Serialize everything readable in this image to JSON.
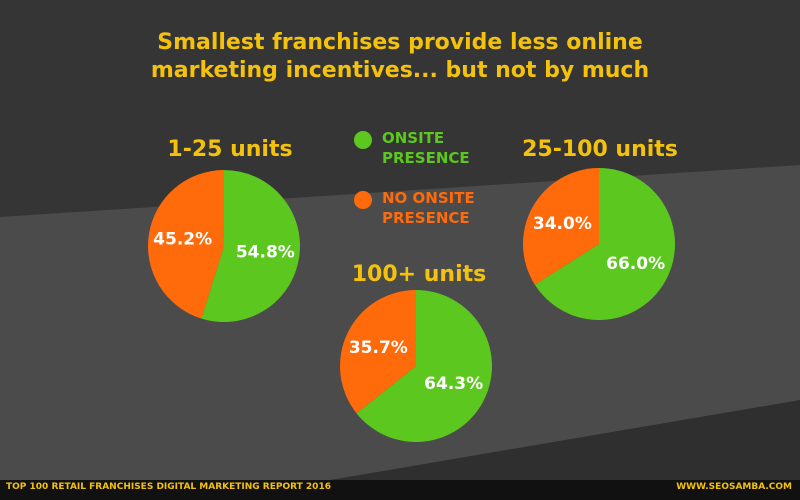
{
  "title_lines": [
    "Smallest franchises provide less online",
    "marketing  incentives... but not by much"
  ],
  "legend": [
    {
      "name": "ONSITE PRESENCE",
      "color": "#5cc71e"
    },
    {
      "name": "NO ONSITE PRESENCE",
      "color": "#ff6a0a"
    }
  ],
  "footer": {
    "left": "TOP 100 RETAIL FRANCHISES DIGITAL MARKETING REPORT 2016",
    "right": "WWW.SEOSAMBA.COM"
  },
  "chart_data": [
    {
      "type": "pie",
      "title": "1-25 units",
      "values": [
        54.8,
        45.2
      ],
      "value_labels": [
        "54.8%",
        "45.2%"
      ]
    },
    {
      "type": "pie",
      "title": "25-100 units",
      "values": [
        66.0,
        34.0
      ],
      "value_labels": [
        "66.0%",
        "34.0%"
      ]
    },
    {
      "type": "pie",
      "title": "100+ units",
      "values": [
        64.3,
        35.7
      ],
      "value_labels": [
        "64.3%",
        "35.7%"
      ]
    }
  ]
}
